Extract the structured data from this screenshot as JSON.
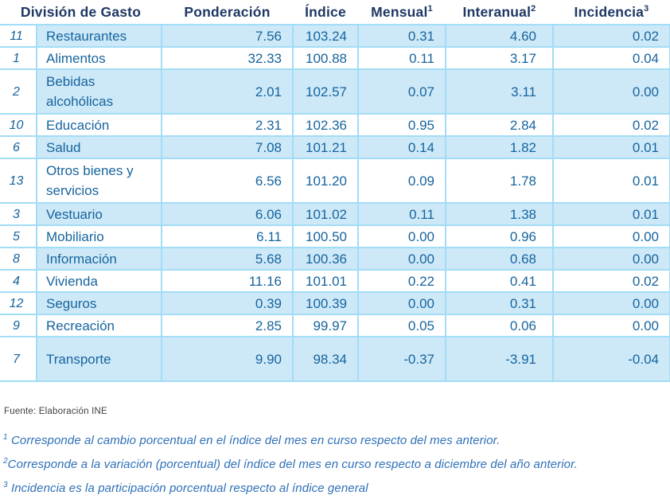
{
  "table": {
    "headers": {
      "division": "División de Gasto",
      "ponderacion": "Ponderación",
      "indice": "Índice",
      "mensual": "Mensual",
      "mensual_sup": "1",
      "interanual": "Interanual",
      "interanual_sup": "2",
      "incidencia": "Incidencia",
      "incidencia_sup": "3"
    },
    "rows": [
      {
        "num": "11",
        "name": "Restaurantes",
        "ponderacion": "7.56",
        "indice": "103.24",
        "mensual": "0.31",
        "interanual": "4.60",
        "incidencia": "0.02"
      },
      {
        "num": "1",
        "name": "Alimentos",
        "ponderacion": "32.33",
        "indice": "100.88",
        "mensual": "0.11",
        "interanual": "3.17",
        "incidencia": "0.04"
      },
      {
        "num": "2",
        "name": "Bebidas alcohólicas",
        "ponderacion": "2.01",
        "indice": "102.57",
        "mensual": "0.07",
        "interanual": "3.11",
        "incidencia": "0.00"
      },
      {
        "num": "10",
        "name": "Educación",
        "ponderacion": "2.31",
        "indice": "102.36",
        "mensual": "0.95",
        "interanual": "2.84",
        "incidencia": "0.02"
      },
      {
        "num": "6",
        "name": "Salud",
        "ponderacion": "7.08",
        "indice": "101.21",
        "mensual": "0.14",
        "interanual": "1.82",
        "incidencia": "0.01"
      },
      {
        "num": "13",
        "name": "Otros bienes y servicios",
        "ponderacion": "6.56",
        "indice": "101.20",
        "mensual": "0.09",
        "interanual": "1.78",
        "incidencia": "0.01"
      },
      {
        "num": "3",
        "name": "Vestuario",
        "ponderacion": "6.06",
        "indice": "101.02",
        "mensual": "0.11",
        "interanual": "1.38",
        "incidencia": "0.01"
      },
      {
        "num": "5",
        "name": "Mobiliario",
        "ponderacion": "6.11",
        "indice": "100.50",
        "mensual": "0.00",
        "interanual": "0.96",
        "incidencia": "0.00"
      },
      {
        "num": "8",
        "name": "Información",
        "ponderacion": "5.68",
        "indice": "100.36",
        "mensual": "0.00",
        "interanual": "0.68",
        "incidencia": "0.00"
      },
      {
        "num": "4",
        "name": "Vivienda",
        "ponderacion": "11.16",
        "indice": "101.01",
        "mensual": "0.22",
        "interanual": "0.41",
        "incidencia": "0.02"
      },
      {
        "num": "12",
        "name": "Seguros",
        "ponderacion": "0.39",
        "indice": "100.39",
        "mensual": "0.00",
        "interanual": "0.31",
        "incidencia": "0.00"
      },
      {
        "num": "9",
        "name": "Recreación",
        "ponderacion": "2.85",
        "indice": "99.97",
        "mensual": "0.05",
        "interanual": "0.06",
        "incidencia": "0.00"
      },
      {
        "num": "7",
        "name": "Transporte",
        "ponderacion": "9.90",
        "indice": "98.34",
        "mensual": "-0.37",
        "interanual": "-3.91",
        "incidencia": "-0.04"
      }
    ]
  },
  "footer": {
    "source": "Fuente: Elaboración INE",
    "footnotes": [
      {
        "sup": "1",
        "text": " Corresponde al cambio porcentual en el índice del mes en curso respecto del mes anterior."
      },
      {
        "sup": "2",
        "text": "Corresponde a la variación (porcentual) del índice del mes en curso respecto a diciembre del año anterior."
      },
      {
        "sup": "3",
        "text": " Incidencia es la participación porcentual respecto al índice general"
      }
    ]
  },
  "colors": {
    "header_text": "#1f3864",
    "cell_text": "#17649e",
    "row_shading": "#cde9f8",
    "border": "#a2dcf6",
    "footnote_text": "#2e70b8",
    "source_text": "#3f3f3f"
  }
}
